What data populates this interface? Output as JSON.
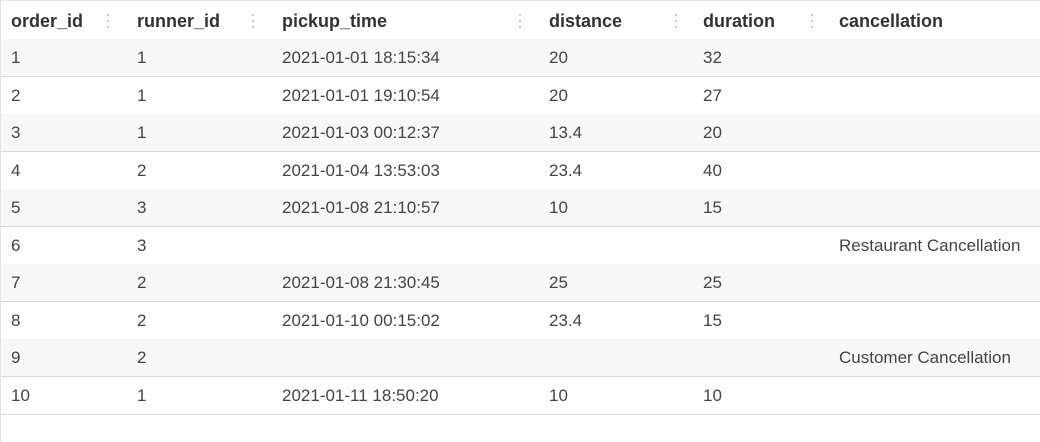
{
  "table": {
    "columns": [
      "order_id",
      "runner_id",
      "pickup_time",
      "distance",
      "duration",
      "cancellation"
    ],
    "rows": [
      [
        "1",
        "1",
        "2021-01-01 18:15:34",
        "20",
        "32",
        ""
      ],
      [
        "2",
        "1",
        "2021-01-01 19:10:54",
        "20",
        "27",
        ""
      ],
      [
        "3",
        "1",
        "2021-01-03 00:12:37",
        "13.4",
        "20",
        ""
      ],
      [
        "4",
        "2",
        "2021-01-04 13:53:03",
        "23.4",
        "40",
        ""
      ],
      [
        "5",
        "3",
        "2021-01-08 21:10:57",
        "10",
        "15",
        ""
      ],
      [
        "6",
        "3",
        "",
        "",
        "",
        "Restaurant Cancellation"
      ],
      [
        "7",
        "2",
        "2021-01-08 21:30:45",
        "25",
        "25",
        ""
      ],
      [
        "8",
        "2",
        "2021-01-10 00:15:02",
        "23.4",
        "15",
        ""
      ],
      [
        "9",
        "2",
        "",
        "",
        "",
        "Customer Cancellation"
      ],
      [
        "10",
        "1",
        "2021-01-11 18:50:20",
        "10",
        "10",
        ""
      ]
    ]
  },
  "icons": {
    "column_resize": "drag-handle-icon"
  },
  "colors": {
    "header_text": "#333333",
    "cell_text": "#444444",
    "row_alt_bg": "#f7f7f7",
    "row_border": "#d9d9d9"
  }
}
